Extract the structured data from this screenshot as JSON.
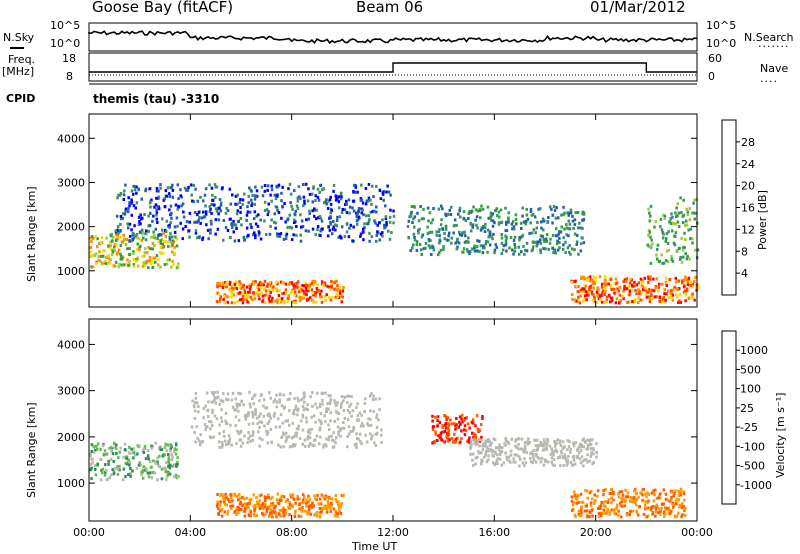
{
  "header": {
    "station": "Goose Bay (fitACF)",
    "beam": "Beam 06",
    "date": "01/Mar/2012"
  },
  "top_panels": {
    "nsky_label": "N.Sky",
    "nsky_ticks": [
      "10^5",
      "10^0"
    ],
    "nsearch_label": "N.Search",
    "nsearch_ticks": [
      "10^5",
      "10^0"
    ],
    "freq_label": "Freq.",
    "freq_unit": "[MHz]",
    "freq_ticks": [
      "18",
      "8"
    ],
    "nave_label": "Nave",
    "nave_ticks": [
      "60",
      "0"
    ],
    "cpid_label": "CPID",
    "cpid_value": "themis (tau) -3310"
  },
  "colors": {
    "power_scale": [
      "#0000ff",
      "#1f5faf",
      "#3a8f6a",
      "#2fa03a",
      "#9acd32",
      "#ffd700",
      "#ff8c00",
      "#ff4500",
      "#ff0000"
    ],
    "velocity_scale": [
      "#1a3fbf",
      "#1d6fa8",
      "#2e8b57",
      "#5fbf3f",
      "#b8b8b0",
      "#b8b8b0",
      "#ff9a00",
      "#ff5a00",
      "#ff0000"
    ]
  },
  "chart_data": [
    {
      "type": "heatmap",
      "name": "power",
      "ylabel": "Slant Range [km]",
      "xlabel": "Time UT",
      "x_ticks": [
        "00:00",
        "04:00",
        "08:00",
        "12:00",
        "16:00",
        "20:00",
        "00:00"
      ],
      "xlim": [
        "00:00",
        "24:00"
      ],
      "y_ticks": [
        1000,
        2000,
        3000,
        4000
      ],
      "ylim": [
        180,
        4550
      ],
      "colorbar_label": "Power [dB]",
      "colorbar_ticks": [
        4,
        8,
        12,
        16,
        20,
        24,
        28
      ],
      "colorbar_range": [
        0,
        32
      ],
      "features": [
        {
          "time_start": "00:00",
          "time_end": "03:30",
          "range_start": 1100,
          "range_end": 1900,
          "level": "mid-high"
        },
        {
          "time_start": "01:00",
          "time_end": "12:00",
          "range_start": 1700,
          "range_end": 3000,
          "level": "low"
        },
        {
          "time_start": "05:00",
          "time_end": "10:00",
          "range_start": 300,
          "range_end": 800,
          "level": "high"
        },
        {
          "time_start": "12:30",
          "time_end": "19:30",
          "range_start": 1400,
          "range_end": 2500,
          "level": "low-mid"
        },
        {
          "time_start": "19:00",
          "time_end": "24:00",
          "range_start": 300,
          "range_end": 900,
          "level": "high"
        },
        {
          "time_start": "22:00",
          "time_end": "24:00",
          "range_start": 1200,
          "range_end": 2700,
          "level": "mid"
        }
      ]
    },
    {
      "type": "heatmap",
      "name": "velocity",
      "ylabel": "Slant Range [km]",
      "xlabel": "Time UT",
      "x_ticks": [
        "00:00",
        "04:00",
        "08:00",
        "12:00",
        "16:00",
        "20:00",
        "00:00"
      ],
      "xlim": [
        "00:00",
        "24:00"
      ],
      "y_ticks": [
        1000,
        2000,
        3000,
        4000
      ],
      "ylim": [
        180,
        4550
      ],
      "colorbar_label": "Velocity [m s⁻¹]",
      "colorbar_ticks": [
        1000,
        500,
        100,
        25,
        -25,
        -100,
        -500,
        -1000
      ],
      "features": [
        {
          "time_start": "00:00",
          "time_end": "03:30",
          "range_start": 1100,
          "range_end": 1900,
          "level": "positive"
        },
        {
          "time_start": "04:00",
          "time_end": "11:30",
          "range_start": 1800,
          "range_end": 3000,
          "level": "near-zero"
        },
        {
          "time_start": "05:00",
          "time_end": "10:00",
          "range_start": 300,
          "range_end": 800,
          "level": "negative"
        },
        {
          "time_start": "13:30",
          "time_end": "15:30",
          "range_start": 1900,
          "range_end": 2500,
          "level": "strong-negative"
        },
        {
          "time_start": "15:00",
          "time_end": "20:00",
          "range_start": 1400,
          "range_end": 2000,
          "level": "near-zero"
        },
        {
          "time_start": "19:00",
          "time_end": "23:30",
          "range_start": 300,
          "range_end": 900,
          "level": "negative"
        }
      ]
    }
  ]
}
